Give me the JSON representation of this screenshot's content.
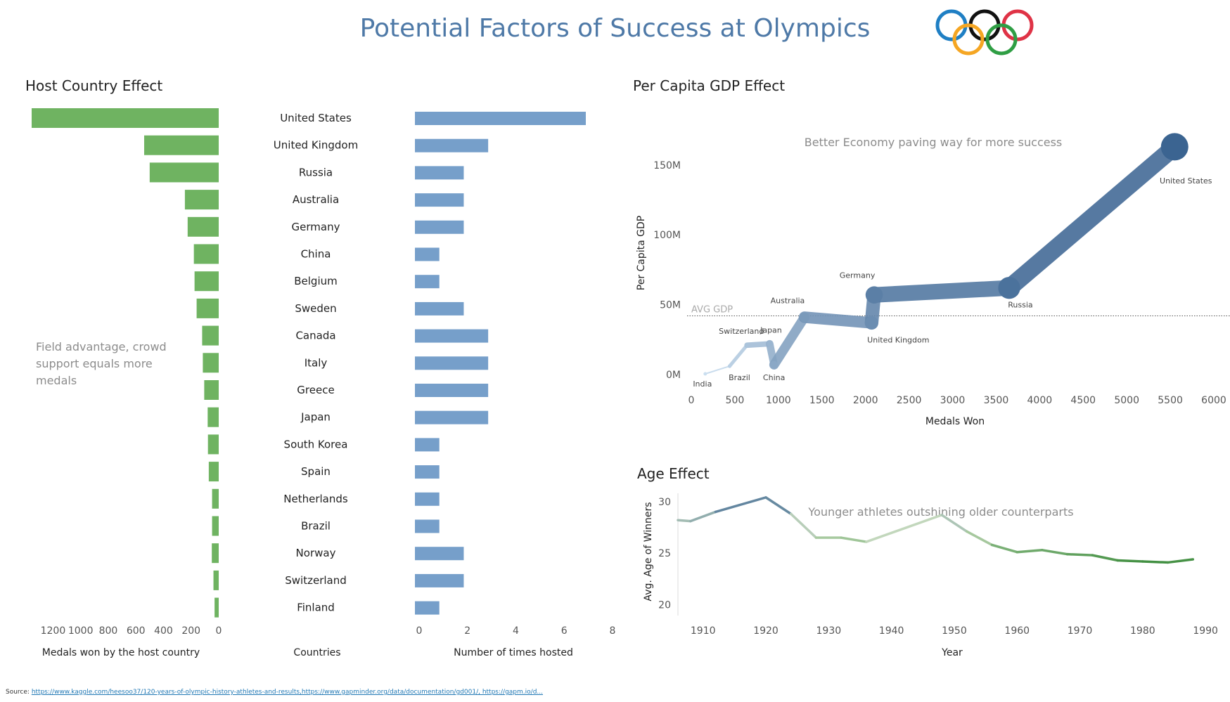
{
  "title": "Potential Factors of Success at Olympics",
  "logo": "olympic-rings",
  "colors": {
    "title": "#4e79a7",
    "green": "#6fb361",
    "blue": "#769fca",
    "annotation": "#8c8c8c"
  },
  "source": {
    "label": "Source:",
    "links": "https://www.kaggle.com/heesoo37/120-years-of-olympic-history-athletes-and-results,https://www.gapminder.org/data/documentation/gd001/, https://gapm.io/d..."
  },
  "chart_data": [
    {
      "id": "host",
      "type": "bar",
      "title": "Host Country Effect",
      "annotation": "Field advantage, crowd support equals more medals",
      "categories": [
        "United States",
        "United Kingdom",
        "Russia",
        "Australia",
        "Germany",
        "China",
        "Belgium",
        "Sweden",
        "Canada",
        "Italy",
        "Greece",
        "Japan",
        "South Korea",
        "Spain",
        "Netherlands",
        "Brazil",
        "Norway",
        "Switzerland",
        "Finland"
      ],
      "category_label": "Countries",
      "series": [
        {
          "axis_label": "Medals won by the host country",
          "values": [
            1355,
            540,
            500,
            245,
            225,
            180,
            175,
            160,
            120,
            115,
            105,
            80,
            78,
            72,
            48,
            48,
            50,
            38,
            30
          ],
          "xlim": [
            1400,
            0
          ],
          "ticks": [
            1200,
            1000,
            800,
            600,
            400,
            200,
            0
          ],
          "color": "#6fb361"
        },
        {
          "axis_label": "Number of times hosted",
          "values": [
            7,
            3,
            2,
            2,
            2,
            1,
            1,
            2,
            3,
            3,
            3,
            3,
            1,
            1,
            1,
            1,
            2,
            2,
            1
          ],
          "xlim": [
            0,
            8
          ],
          "ticks": [
            0,
            2,
            4,
            6,
            8
          ],
          "color": "#769fca"
        }
      ]
    },
    {
      "id": "gdp",
      "type": "line",
      "title": "Per Capita GDP Effect",
      "annotation": "Better Economy paving way for more success",
      "xlabel": "Medals Won",
      "ylabel": "Per Capita GDP",
      "xlim": [
        0,
        6000
      ],
      "ylim": [
        0,
        170
      ],
      "xticks": [
        0,
        500,
        1000,
        1500,
        2000,
        2500,
        3000,
        3500,
        4000,
        4500,
        5000,
        5500,
        6000
      ],
      "yticks": [
        0,
        50,
        100,
        150
      ],
      "ytick_labels": [
        "0M",
        "50M",
        "100M",
        "150M"
      ],
      "reference_line": {
        "label": "AVG GDP",
        "value": 42
      },
      "points": [
        {
          "label": "India",
          "x": 160,
          "y": 0.5
        },
        {
          "label": "Brazil",
          "x": 440,
          "y": 6
        },
        {
          "label": "Switzerland",
          "x": 640,
          "y": 21
        },
        {
          "label": "Japan",
          "x": 900,
          "y": 22
        },
        {
          "label": "China",
          "x": 950,
          "y": 7
        },
        {
          "label": "Australia",
          "x": 1300,
          "y": 41
        },
        {
          "label": "United Kingdom",
          "x": 2070,
          "y": 37
        },
        {
          "label": "Germany",
          "x": 2100,
          "y": 57
        },
        {
          "label": "Russia",
          "x": 3650,
          "y": 62
        },
        {
          "label": "United States",
          "x": 5550,
          "y": 163
        }
      ]
    },
    {
      "id": "age",
      "type": "line",
      "title": "Age Effect",
      "annotation": "Younger athletes outshining older counterparts",
      "xlabel": "Year",
      "ylabel": "Avg. Age of Winners",
      "xlim": [
        1906,
        1992
      ],
      "ylim": [
        19.5,
        30.8
      ],
      "xticks": [
        1910,
        1920,
        1930,
        1940,
        1950,
        1960,
        1970,
        1980,
        1990
      ],
      "yticks": [
        20,
        25,
        30
      ],
      "x": [
        1906,
        1908,
        1912,
        1920,
        1924,
        1928,
        1932,
        1936,
        1948,
        1952,
        1956,
        1960,
        1964,
        1968,
        1972,
        1976,
        1980,
        1984,
        1988
      ],
      "y": [
        28.2,
        28.1,
        29.0,
        30.4,
        28.8,
        26.5,
        26.5,
        26.1,
        28.7,
        27.1,
        25.8,
        25.1,
        25.3,
        24.9,
        24.8,
        24.3,
        24.2,
        24.1,
        24.4
      ]
    }
  ]
}
